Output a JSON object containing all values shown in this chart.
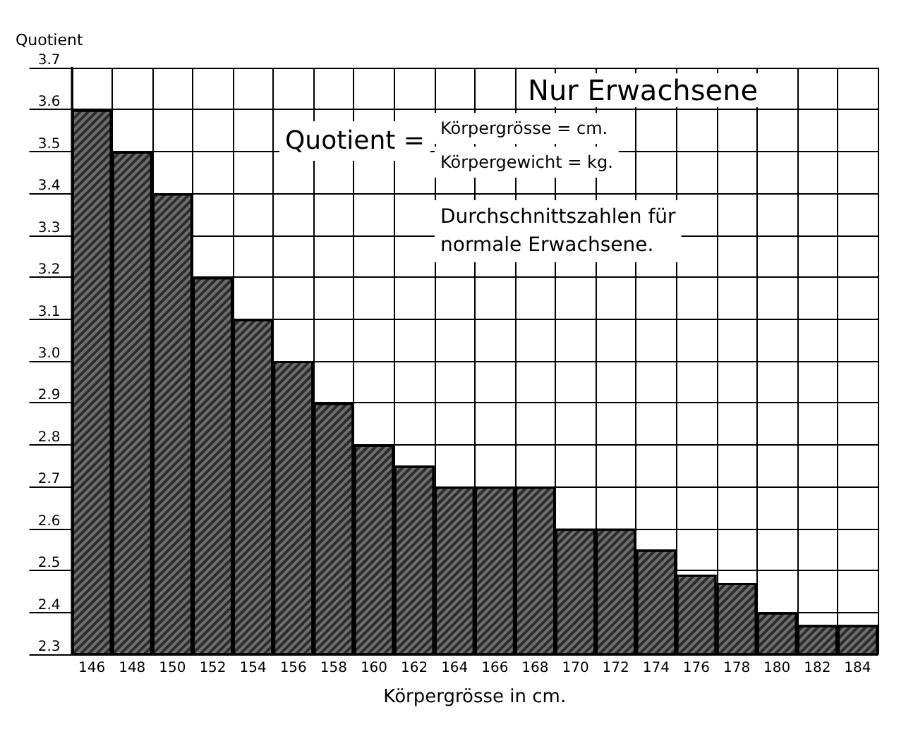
{
  "chart_data": {
    "type": "bar",
    "title": "Nur Erwachsene",
    "ylabel": "Quotient",
    "xlabel": "Körpergrösse in cm.",
    "annotations": [
      "Quotient =",
      "Körpergrösse = cm.",
      "Körpergewicht = kg.",
      "Durchschnittszahlen für\nnormale Erwachsene."
    ],
    "categories": [
      "146",
      "148",
      "150",
      "152",
      "154",
      "156",
      "158",
      "160",
      "162",
      "164",
      "166",
      "168",
      "170",
      "172",
      "174",
      "176",
      "178",
      "180",
      "182",
      "184"
    ],
    "values": [
      3.6,
      3.5,
      3.4,
      3.2,
      3.1,
      3.0,
      2.9,
      2.8,
      2.75,
      2.7,
      2.7,
      2.7,
      2.6,
      2.6,
      2.55,
      2.49,
      2.47,
      2.4,
      2.37,
      2.37
    ],
    "color": "#6e6e6e",
    "ylim": [
      2.3,
      3.7
    ],
    "yticks": [
      2.3,
      2.4,
      2.5,
      2.6,
      2.7,
      2.8,
      2.9,
      {
        "value": 3.0,
        "label": "3.0"
      },
      3.1,
      3.2,
      3.3,
      3.4,
      3.5,
      3.6,
      3.7
    ],
    "grid": true
  }
}
